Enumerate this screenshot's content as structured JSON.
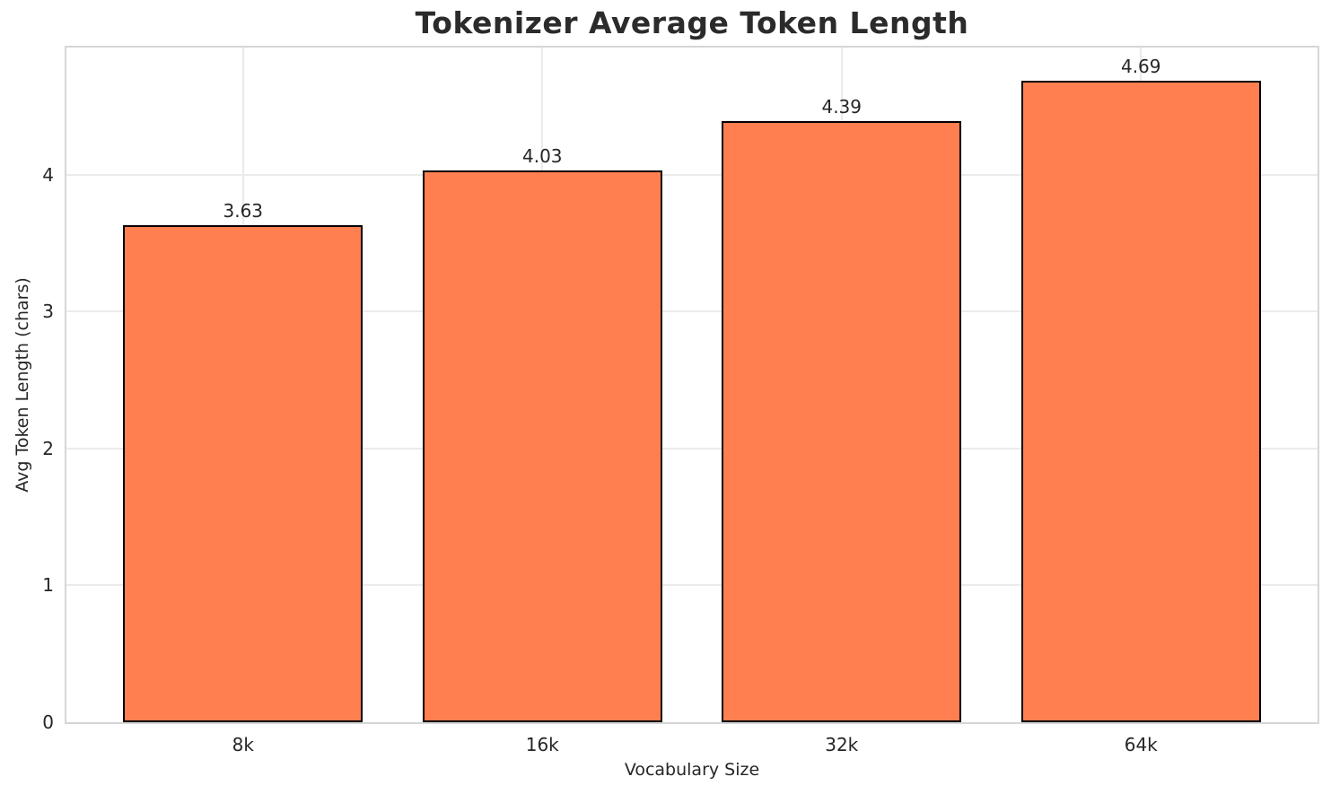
{
  "chart_data": {
    "type": "bar",
    "title": "Tokenizer Average Token Length",
    "xlabel": "Vocabulary Size",
    "ylabel": "Avg Token Length (chars)",
    "categories": [
      "8k",
      "16k",
      "32k",
      "64k"
    ],
    "values": [
      3.63,
      4.03,
      4.39,
      4.69
    ],
    "value_labels": [
      "3.63",
      "4.03",
      "4.39",
      "4.69"
    ],
    "yticks": [
      0,
      1,
      2,
      3,
      4
    ],
    "ylim": [
      0,
      4.93
    ],
    "xlim": [
      -0.59,
      3.59
    ],
    "bar_width": 0.8,
    "grid": true,
    "legend_position": "none",
    "colors": {
      "bar_fill": "#FF7F50",
      "bar_edge": "#000000",
      "grid": "#ebebeb",
      "spine": "#d6d6d6",
      "text": "#262626",
      "title_text": "#2b2b2b",
      "background": "#ffffff"
    }
  }
}
